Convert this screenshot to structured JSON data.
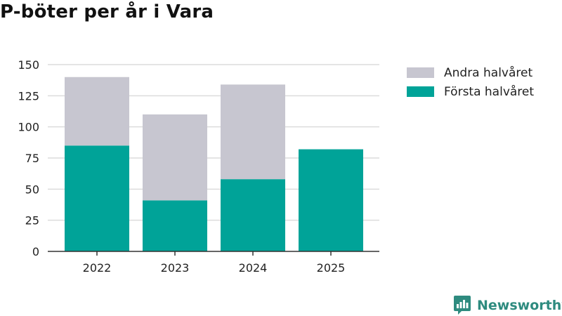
{
  "title": "P-böter per år i Vara",
  "colors": {
    "forsta": "#00a398",
    "andra": "#c7c6d0",
    "grid": "#dcdcdc",
    "axis": "#333333",
    "brand": "#2e8b7f"
  },
  "legend": [
    {
      "label": "Andra halvåret",
      "color": "#c7c6d0"
    },
    {
      "label": "Första halvåret",
      "color": "#00a398"
    }
  ],
  "logo": {
    "icon": "bar-chart-speech-bubble-icon",
    "text": "Newsworthy"
  },
  "chart_data": {
    "type": "bar",
    "stacked": true,
    "categories": [
      "2022",
      "2023",
      "2024",
      "2025"
    ],
    "series": [
      {
        "name": "Första halvåret",
        "values": [
          85,
          41,
          58,
          82
        ]
      },
      {
        "name": "Andra halvåret",
        "values": [
          55,
          69,
          76,
          0
        ]
      }
    ],
    "y_ticks": [
      0,
      25,
      50,
      75,
      100,
      125,
      150
    ],
    "ylim": [
      0,
      150
    ],
    "grid": true,
    "legend_position": "right"
  }
}
